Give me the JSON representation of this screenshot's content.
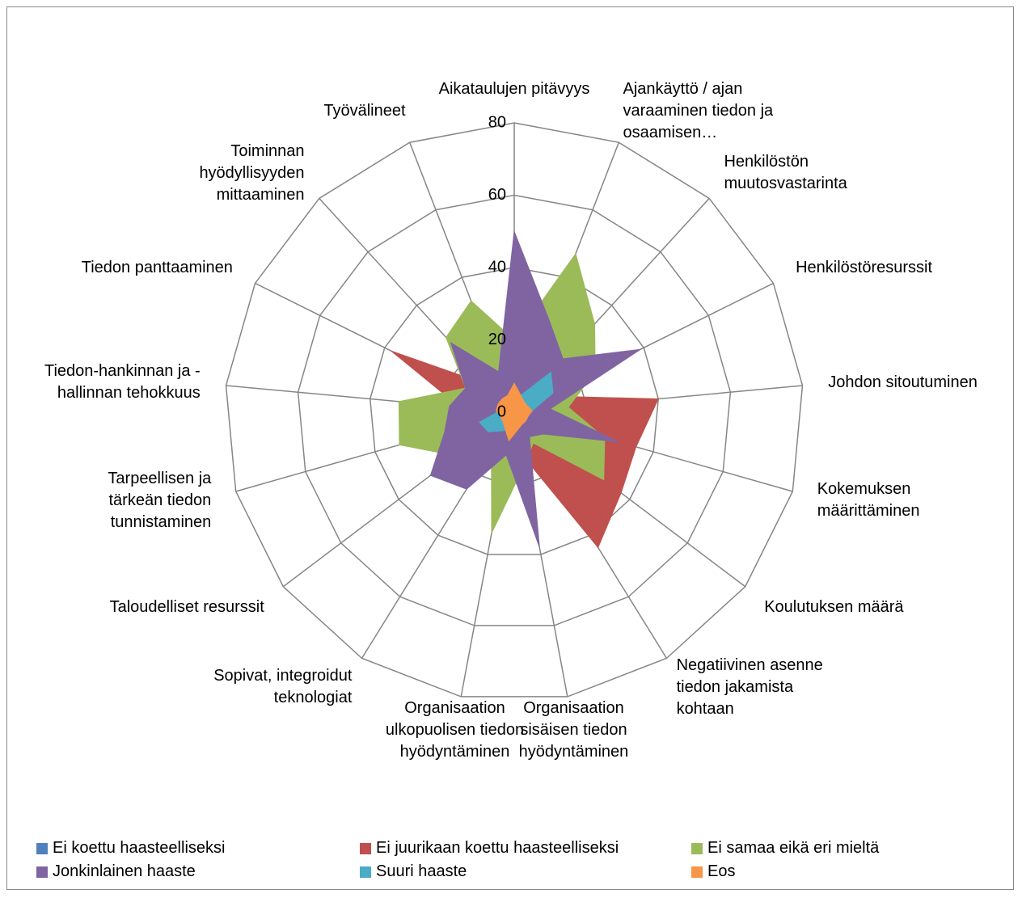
{
  "chart_data": {
    "type": "radar",
    "categories": [
      "Aikataulujen pitävyys",
      "Ajankäyttö / ajan varaaminen tiedon ja osaamisen…",
      "Henkilöstön muutosvastarinta",
      "Henkilöstöresurssit",
      "Johdon sitoutuminen",
      "Kokemuksen määrittäminen",
      "Koulutuksen määrä",
      "Negatiivinen asenne tiedon jakamista kohtaan",
      "Organisaation sisäisen tiedon hyödyntäminen",
      "Organisaation ulkopuolisen tiedon hyödyntäminen",
      "Sopivat, integroidut teknologiat",
      "Taloudelliset resurssit",
      "Tarpeellisen ja tärkeän tiedon tunnistaminen",
      "Tiedon-hankinnan ja -hallinnan tehokkuus",
      "Tiedon panttaaminen",
      "Toiminnan hyödyllisyyden mittaaminen",
      "Työvälineet"
    ],
    "series": [
      {
        "name": "Ei koettu haasteelliseksi",
        "color": "#4f81bd",
        "values": [
          2,
          2,
          2,
          2,
          2,
          2,
          2,
          2,
          2,
          2,
          2,
          2,
          2,
          2,
          2,
          2,
          2
        ]
      },
      {
        "name": "Ei juurikaan koettu haasteelliseksi",
        "color": "#c0504d",
        "values": [
          5,
          5,
          8,
          10,
          40,
          35,
          37,
          44,
          12,
          20,
          8,
          8,
          10,
          15,
          38,
          10,
          8
        ]
      },
      {
        "name": "Ei samaa eikä eri mieltä",
        "color": "#9bbb59",
        "values": [
          20,
          47,
          33,
          25,
          15,
          26,
          31,
          10,
          15,
          34,
          12,
          20,
          33,
          32,
          15,
          28,
          33
        ]
      },
      {
        "name": "Jonkinlainen haaste",
        "color": "#8064a2",
        "values": [
          50,
          27,
          20,
          39,
          10,
          30,
          10,
          8,
          38,
          12,
          25,
          29,
          20,
          18,
          15,
          26,
          12
        ]
      },
      {
        "name": "Suuri haaste",
        "color": "#4bacc6",
        "values": [
          4,
          5,
          15,
          12,
          5,
          4,
          3,
          3,
          4,
          5,
          6,
          9,
          10,
          4,
          4,
          3,
          3
        ]
      },
      {
        "name": "Eos",
        "color": "#f79646",
        "values": [
          8,
          5,
          4,
          4,
          5,
          4,
          4,
          4,
          5,
          8,
          5,
          4,
          4,
          5,
          5,
          5,
          5
        ]
      }
    ],
    "ylim": [
      0,
      80
    ],
    "yticks": [
      0,
      20,
      40,
      60,
      80
    ],
    "grid": true
  }
}
